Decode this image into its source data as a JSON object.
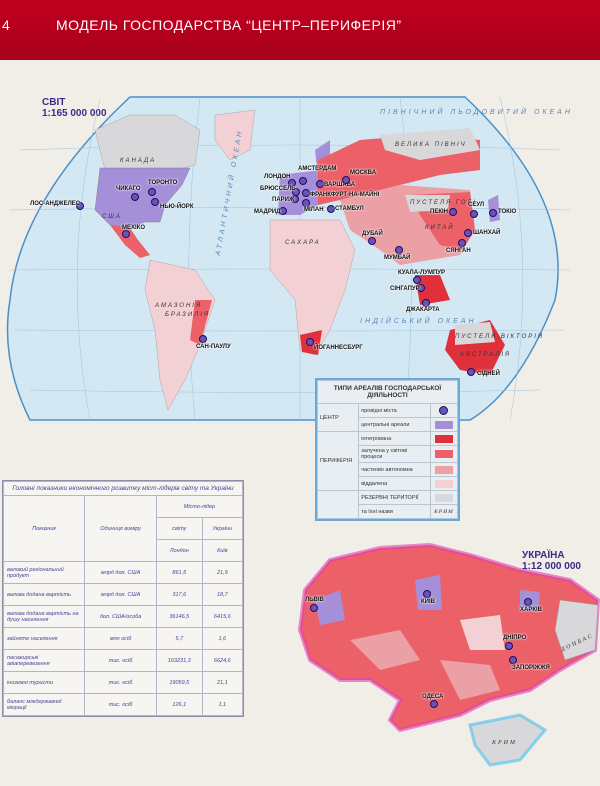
{
  "header": {
    "page_number": "4",
    "title": "МОДЕЛЬ ГОСПОДАРСТВА “ЦЕНТР–ПЕРИФЕРІЯ”"
  },
  "world_map": {
    "title": "СВІТ",
    "scale": "1:165 000 000",
    "cities": [
      "ЛОС-АНДЖЕЛЕС",
      "ЧИКАГО",
      "ТОРОНТО",
      "НЬЮ-ЙОРК",
      "МЕХІКО",
      "ЛОНДОН",
      "АМСТЕРДАМ",
      "БРЮССЕЛЬ",
      "ФРАНКФУРТ-НА-МАЙНІ",
      "ПАРИЖ",
      "МІЛАН",
      "МАДРИД",
      "ВАРШАВА",
      "МОСКВА",
      "СТАМБУЛ",
      "ДУБАЙ",
      "МУМБАЙ",
      "ПЕКІН",
      "СЕУЛ",
      "ТОКІО",
      "ШАНХАЙ",
      "СЯНГАН",
      "КУАЛА-ЛУМПУР",
      "СІНГАПУР",
      "ДЖАКАРТА",
      "САН-ПАУЛУ",
      "ЙОГАННЕСБУРГ",
      "СІДНЕЙ"
    ],
    "oceans": [
      "ПІВНІЧНИЙ ЛЬОДОВИТИЙ ОКЕАН",
      "ІНДІЙСЬКИЙ ОКЕАН",
      "АТЛАНТИЧНИЙ ОКЕАН"
    ],
    "regions": [
      "ВЕЛИКА ПІВНІЧ",
      "ПУСТЕЛЯ ГОБІ",
      "ПУСТЕЛЯ ВІКТОРІЯ",
      "АМАЗОНІЯ",
      "САХАРА",
      "США",
      "КАНАДА",
      "БРАЗИЛІЯ",
      "КИТАЙ",
      "АВСТРАЛІЯ"
    ]
  },
  "legend": {
    "title": "ТИПИ АРЕАЛІВ ГОСПОДАРСЬКОЇ ДІЯЛЬНОСТІ",
    "groups": {
      "center": "ЦЕНТР",
      "periphery": "ПЕРИФЕРІЯ"
    },
    "items": [
      {
        "label": "провідні міста",
        "color": "#6a52b8",
        "shape": "circle"
      },
      {
        "label": "центральні ареали",
        "color": "#a58fd8"
      },
      {
        "label": "інтегрована",
        "color": "#e0303c"
      },
      {
        "label": "залучена у світові процеси",
        "color": "#ec6068"
      },
      {
        "label": "частково автономна",
        "color": "#eba0a6"
      },
      {
        "label": "віддалена",
        "color": "#f3d0d3"
      }
    ],
    "reserve": {
      "label": "РЕЗЕРВНІ ТЕРИТОРІЇ",
      "sub": "та їхні назви",
      "example": "КРИМ",
      "color": "#d8d8da"
    }
  },
  "stats_table": {
    "caption": "Головні показники економічного розвитку міст-лідерів світу та України",
    "headers": {
      "indicator": "Показник",
      "unit": "Одиниця виміру",
      "leader": "Місто-лідер",
      "world": "світу",
      "ukraine": "України",
      "world_city": "Лондон",
      "ukraine_city": "Київ"
    },
    "rows": [
      {
        "indicator": "валовий регіональний продукт",
        "unit": "млрд дол. США",
        "world": "861,5",
        "ukraine": "21,9"
      },
      {
        "indicator": "валова додана вартість",
        "unit": "млрд дол. США",
        "world": "317,6",
        "ukraine": "18,7"
      },
      {
        "indicator": "валова додана вартість на душу населення",
        "unit": "дол. США/особа",
        "world": "36146,5",
        "ukraine": "6415,6"
      },
      {
        "indicator": "зайняте населення",
        "unit": "млн осіб",
        "world": "5,7",
        "ukraine": "1,6"
      },
      {
        "indicator": "пасажирські авіаперевезення",
        "unit": "тис. осіб",
        "world": "163231,3",
        "ukraine": "6624,6"
      },
      {
        "indicator": "іноземні туристи",
        "unit": "тис. осіб",
        "world": "19059,5",
        "ukraine": "21,1"
      },
      {
        "indicator": "баланс міждержавної міграції",
        "unit": "тис. осіб",
        "world": "126,1",
        "ukraine": "1,1"
      }
    ]
  },
  "ukraine_map": {
    "title": "УКРАЇНА",
    "scale": "1:12 000 000",
    "cities": [
      "ЛЬВІВ",
      "КИЇВ",
      "ХАРКІВ",
      "ДНІПРО",
      "ЗАПОРІЖЖЯ",
      "ОДЕСА"
    ],
    "reserve_labels": [
      "ДОНБАС",
      "КРИМ"
    ]
  },
  "colors": {
    "header": "#b5001e",
    "ocean": "#d4e8f4",
    "center": "#a58fd8",
    "integrated": "#e0303c",
    "involved": "#ec6068",
    "partial": "#eba0a6",
    "remote": "#f3d0d3",
    "reserve": "#d8d8da"
  }
}
